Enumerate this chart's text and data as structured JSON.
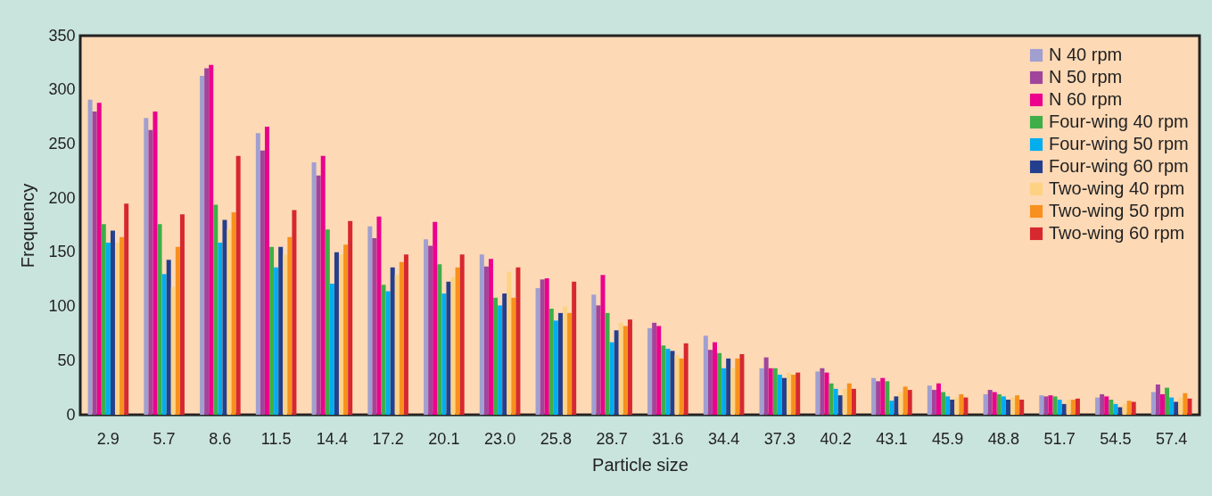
{
  "chart_data": {
    "type": "bar",
    "xlabel": "Particle size",
    "ylabel": "Frequency",
    "categories": [
      "2.9",
      "5.7",
      "8.6",
      "11.5",
      "14.4",
      "17.2",
      "20.1",
      "23.0",
      "25.8",
      "28.7",
      "31.6",
      "34.4",
      "37.3",
      "40.2",
      "43.1",
      "45.9",
      "48.8",
      "51.7",
      "54.5",
      "57.4"
    ],
    "ylim": [
      0,
      350
    ],
    "yticks": [
      0,
      50,
      100,
      150,
      200,
      250,
      300,
      350
    ],
    "grid": false,
    "legend": "top right",
    "series": [
      {
        "name": "N 40 rpm",
        "color": "#a09fd0",
        "values": [
          291,
          274,
          313,
          260,
          233,
          174,
          162,
          148,
          117,
          111,
          80,
          73,
          43,
          40,
          34,
          27,
          19,
          18,
          16,
          21
        ]
      },
      {
        "name": "N 50 rpm",
        "color": "#a0449c",
        "values": [
          280,
          263,
          320,
          244,
          221,
          163,
          156,
          137,
          125,
          101,
          85,
          60,
          53,
          43,
          31,
          23,
          23,
          17,
          19,
          28
        ]
      },
      {
        "name": "N 60 rpm",
        "color": "#ec008c",
        "values": [
          288,
          280,
          323,
          266,
          239,
          183,
          178,
          144,
          126,
          129,
          82,
          67,
          43,
          39,
          34,
          29,
          21,
          18,
          17,
          19
        ]
      },
      {
        "name": "Four-wing 40 rpm",
        "color": "#3fae49",
        "values": [
          176,
          176,
          194,
          155,
          171,
          120,
          139,
          108,
          98,
          94,
          64,
          57,
          43,
          29,
          31,
          21,
          19,
          17,
          14,
          25
        ]
      },
      {
        "name": "Four-wing 50 rpm",
        "color": "#00aeef",
        "values": [
          159,
          130,
          159,
          136,
          121,
          114,
          112,
          101,
          87,
          67,
          61,
          43,
          37,
          24,
          13,
          17,
          17,
          14,
          10,
          16
        ]
      },
      {
        "name": "Four-wing 60 rpm",
        "color": "#253f8f",
        "values": [
          170,
          143,
          180,
          155,
          150,
          136,
          123,
          112,
          94,
          78,
          59,
          52,
          34,
          18,
          17,
          14,
          14,
          10,
          7,
          12
        ]
      },
      {
        "name": "Two-wing 40 rpm",
        "color": "#fdd283",
        "values": [
          159,
          118,
          171,
          148,
          148,
          129,
          127,
          132,
          100,
          85,
          55,
          43,
          39,
          24,
          21,
          16,
          16,
          14,
          10,
          16
        ]
      },
      {
        "name": "Two-wing 50 rpm",
        "color": "#f7901e",
        "values": [
          164,
          155,
          187,
          164,
          157,
          141,
          136,
          108,
          94,
          82,
          52,
          52,
          37,
          29,
          26,
          19,
          18,
          14,
          13,
          20
        ]
      },
      {
        "name": "Two-wing 60 rpm",
        "color": "#d7282f",
        "values": [
          195,
          185,
          239,
          189,
          179,
          148,
          148,
          136,
          123,
          88,
          66,
          56,
          39,
          24,
          23,
          16,
          14,
          15,
          12,
          15
        ]
      }
    ]
  }
}
